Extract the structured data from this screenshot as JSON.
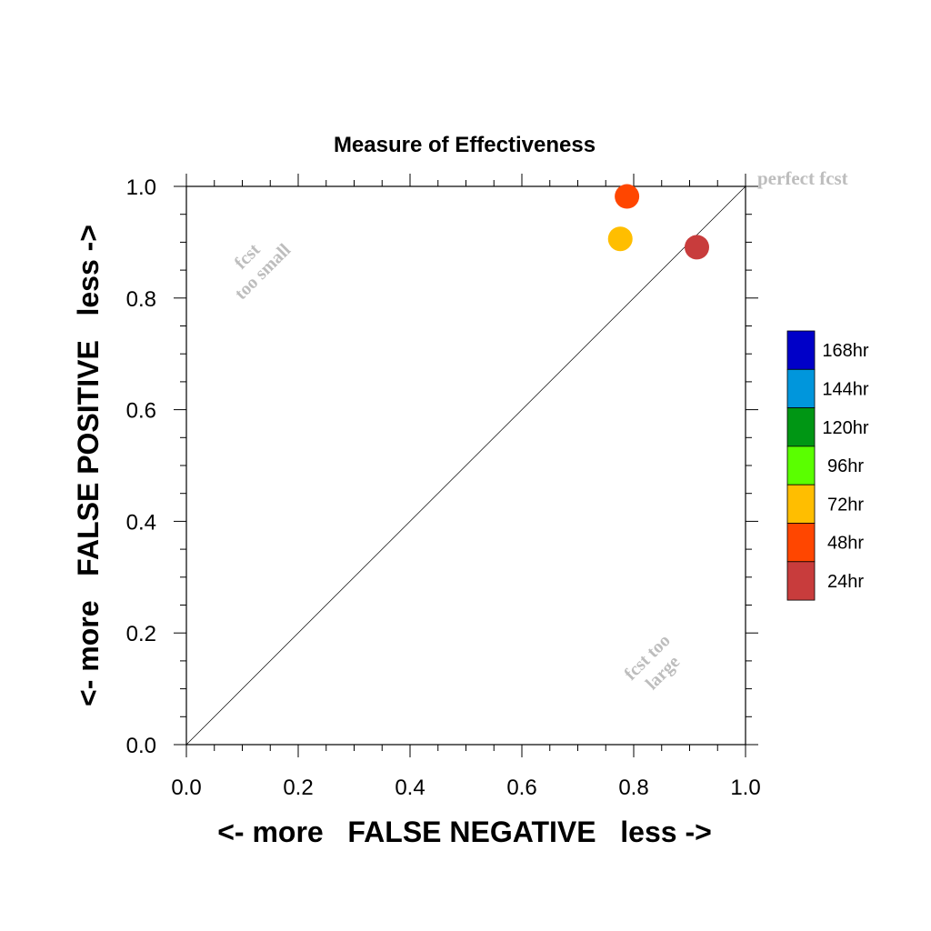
{
  "chart_data": {
    "type": "scatter",
    "title": "Measure of Effectiveness",
    "xlabel": "<- more   FALSE NEGATIVE   less ->",
    "ylabel": "<- more   FALSE POSITIVE   less ->",
    "xlim": [
      0.0,
      1.0
    ],
    "ylim": [
      0.0,
      1.0
    ],
    "x_ticks": [
      "0.0",
      "0.2",
      "0.4",
      "0.6",
      "0.8",
      "1.0"
    ],
    "y_ticks": [
      "0.0",
      "0.2",
      "0.4",
      "0.6",
      "0.8",
      "1.0"
    ],
    "grid": false,
    "reference_line": {
      "from": [
        0.0,
        0.0
      ],
      "to": [
        1.0,
        1.0
      ]
    },
    "annotations": {
      "perfect": "perfect fcst",
      "too_small_line1": "fcst",
      "too_small_line2": "too small",
      "too_large_line1": "fcst too",
      "too_large_line2": "large"
    },
    "legend": {
      "position": "right",
      "entries": [
        {
          "label": "168hr",
          "color": "#0000c8"
        },
        {
          "label": "144hr",
          "color": "#0096dc"
        },
        {
          "label": "120hr",
          "color": "#009614"
        },
        {
          "label": "96hr",
          "color": "#5aff00"
        },
        {
          "label": "72hr",
          "color": "#ffbe00"
        },
        {
          "label": "48hr",
          "color": "#ff4600"
        },
        {
          "label": "24hr",
          "color": "#c83c3c"
        }
      ]
    },
    "points": [
      {
        "label": "24hr",
        "x": 0.913,
        "y": 0.891,
        "color": "#c83c3c"
      },
      {
        "label": "48hr",
        "x": 0.788,
        "y": 0.982,
        "color": "#ff4600"
      },
      {
        "label": "72hr",
        "x": 0.776,
        "y": 0.906,
        "color": "#ffbe00"
      }
    ]
  }
}
